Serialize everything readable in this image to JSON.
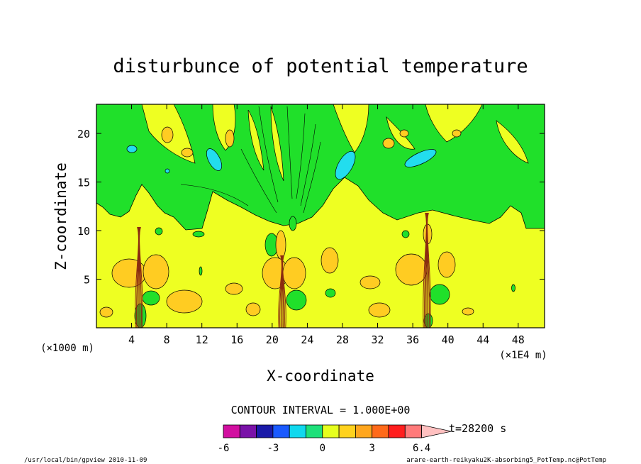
{
  "chart_data": {
    "type": "heatmap",
    "title": "disturbunce of potential temperature",
    "xlabel": "X-coordinate",
    "ylabel": "Z-coordinate",
    "x_unit_left": "(×1000 m)",
    "x_unit_right": "(×1E4 m)",
    "xlim": [
      0,
      51
    ],
    "ylim": [
      0,
      23
    ],
    "xticks": [
      4,
      8,
      12,
      16,
      20,
      24,
      28,
      32,
      36,
      40,
      44,
      48
    ],
    "yticks": [
      5,
      10,
      15,
      20
    ],
    "contour_interval_text": "CONTOUR INTERVAL = 1.000E+00",
    "time_text": "t=28200 s",
    "colorbar": {
      "colors": [
        "#d20fa0",
        "#7a12a8",
        "#1a1aa8",
        "#1a5aff",
        "#10d8ee",
        "#1ee07a",
        "#e6ff1e",
        "#ffd21e",
        "#ffa61e",
        "#ff6a1a",
        "#ff1e1e",
        "#ff7a7a",
        "#ffc0c0"
      ],
      "labels": [
        "-6",
        "-3",
        "0",
        "3",
        "6.4"
      ]
    },
    "background_color": "#eeff22",
    "upper_layer_color": "#20e02a",
    "footer_left": "/usr/local/bin/gpview  2010-11-09",
    "footer_right": "arare-earth-reikyaku2K-absorbing5_PotTemp.nc@PotTemp"
  }
}
